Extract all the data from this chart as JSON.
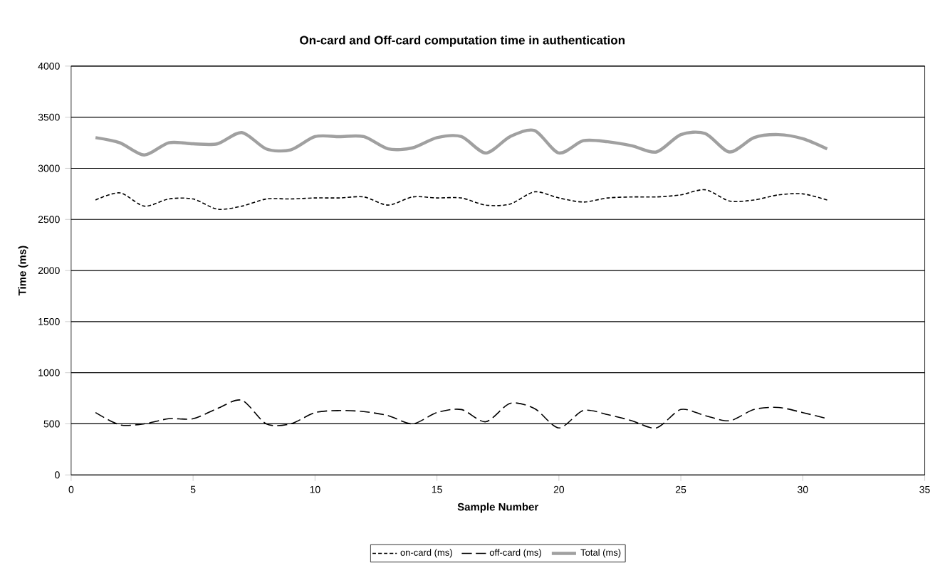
{
  "chart_data": {
    "type": "line",
    "title": "On-card and Off-card computation time in authentication",
    "xlabel": "Sample Number",
    "ylabel": "Time (ms)",
    "x": [
      1,
      2,
      3,
      4,
      5,
      6,
      7,
      8,
      9,
      10,
      11,
      12,
      13,
      14,
      15,
      16,
      17,
      18,
      19,
      20,
      21,
      22,
      23,
      24,
      25,
      26,
      27,
      28,
      29,
      30,
      31
    ],
    "series": [
      {
        "name": "on-card (ms)",
        "color": "#000000",
        "line_style": "dotted",
        "values": [
          2690,
          2760,
          2630,
          2700,
          2700,
          2600,
          2630,
          2700,
          2700,
          2710,
          2710,
          2720,
          2640,
          2720,
          2710,
          2710,
          2640,
          2650,
          2770,
          2710,
          2670,
          2710,
          2720,
          2720,
          2740,
          2790,
          2680,
          2690,
          2740,
          2750,
          2690
        ]
      },
      {
        "name": "off-card (ms)",
        "color": "#000000",
        "line_style": "dashed",
        "values": [
          610,
          490,
          500,
          550,
          550,
          650,
          730,
          500,
          500,
          610,
          630,
          620,
          580,
          500,
          610,
          640,
          520,
          700,
          650,
          460,
          630,
          590,
          530,
          460,
          640,
          580,
          530,
          640,
          660,
          610,
          550
        ]
      },
      {
        "name": "Total (ms)",
        "color": "#a0a0a0",
        "line_style": "solid",
        "values": [
          3300,
          3250,
          3130,
          3250,
          3240,
          3240,
          3350,
          3190,
          3180,
          3310,
          3310,
          3310,
          3190,
          3200,
          3300,
          3310,
          3150,
          3310,
          3370,
          3150,
          3270,
          3260,
          3220,
          3160,
          3330,
          3340,
          3160,
          3300,
          3330,
          3290,
          3190
        ]
      }
    ],
    "xlim": [
      0,
      35
    ],
    "xticks": [
      0,
      5,
      10,
      15,
      20,
      25,
      30,
      35
    ],
    "ylim": [
      0,
      4000
    ],
    "yticks": [
      0,
      500,
      1000,
      1500,
      2000,
      2500,
      3000,
      3500,
      4000
    ],
    "grid": "y",
    "legend": "bottom",
    "marker": "none"
  }
}
